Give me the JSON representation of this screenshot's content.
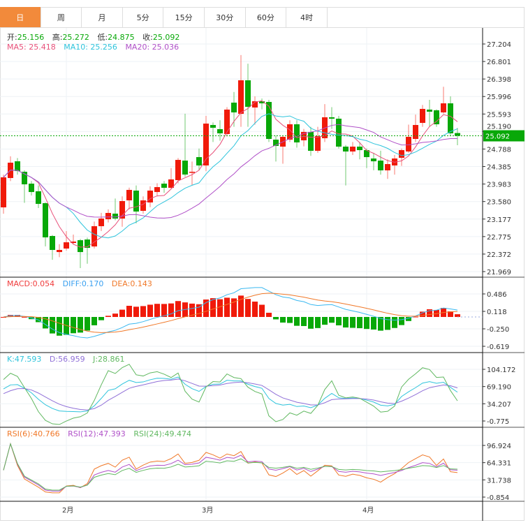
{
  "tabs": [
    {
      "label": "日",
      "active": true
    },
    {
      "label": "周"
    },
    {
      "label": "月"
    },
    {
      "label": "5分"
    },
    {
      "label": "15分"
    },
    {
      "label": "30分"
    },
    {
      "label": "60分"
    },
    {
      "label": "4时"
    }
  ],
  "ohlc_header": {
    "open_label": "开:",
    "open": "25.156",
    "high_label": "高:",
    "high": "25.272",
    "low_label": "低:",
    "low": "24.875",
    "close_label": "收:",
    "close": "25.092"
  },
  "ma_header": {
    "ma5": "MA5: 25.418",
    "ma10": "MA10: 25.256",
    "ma20": "MA20: 25.036"
  },
  "macd_header": {
    "macd": "MACD:0.054",
    "diff": "DIFF:0.170",
    "dea": "DEA:0.143"
  },
  "kdj_header": {
    "k": "K:47.593",
    "d": "D:56.959",
    "j": "J:28.861"
  },
  "rsi_header": {
    "rsi6": "RSI(6):40.766",
    "rsi12": "RSI(12):47.393",
    "rsi24": "RSI(24):49.474"
  },
  "colors": {
    "up": "#f01a0a",
    "down": "#08a808",
    "ma5": "#e8507a",
    "ma10": "#2ec4dc",
    "ma20": "#b050c8",
    "accent": "#f28a3b"
  },
  "chart_data": {
    "type": "candlestick",
    "price_axis": {
      "ticks": [
        "27.204",
        "26.801",
        "26.398",
        "25.996",
        "25.593",
        "25.190",
        "24.788",
        "24.385",
        "23.983",
        "23.580",
        "23.177",
        "22.775",
        "22.372",
        "21.969"
      ],
      "range": [
        21.969,
        27.204
      ]
    },
    "last_close": "25.092",
    "macd_axis": {
      "ticks": [
        "0.486",
        "0.118",
        "-0.250",
        "-0.619"
      ],
      "range": [
        -0.619,
        0.486
      ]
    },
    "kdj_axis": {
      "ticks": [
        "104.172",
        "69.190",
        "34.207",
        "-0.775"
      ],
      "range": [
        -0.775,
        104.172
      ]
    },
    "rsi_axis": {
      "ticks": [
        "96.924",
        "64.331",
        "31.738",
        "-0.854"
      ],
      "range": [
        -0.854,
        96.924
      ]
    },
    "x_labels": [
      {
        "label": "2月",
        "index": 9
      },
      {
        "label": "3月",
        "index": 29
      },
      {
        "label": "4月",
        "index": 52
      }
    ],
    "candles": [
      [
        23.446,
        24.137,
        24.2,
        23.3
      ],
      [
        24.121,
        24.474,
        24.62,
        24.05
      ],
      [
        24.506,
        24.281,
        24.58,
        24.2
      ],
      [
        24.265,
        23.976,
        24.3,
        23.55
      ],
      [
        23.992,
        23.799,
        24.05,
        23.72
      ],
      [
        23.816,
        23.526,
        23.95,
        23.43
      ],
      [
        23.543,
        22.756,
        23.56,
        22.55
      ],
      [
        22.788,
        22.467,
        22.81,
        22.24
      ],
      [
        22.418,
        22.467,
        22.6,
        22.3
      ],
      [
        22.499,
        22.643,
        22.9,
        22.45
      ],
      [
        22.627,
        22.659,
        22.82,
        22.6
      ],
      [
        22.691,
        22.418,
        22.72,
        22.05
      ],
      [
        22.707,
        22.515,
        22.75,
        22.15
      ],
      [
        22.547,
        23.013,
        23.12,
        22.5
      ],
      [
        23.013,
        23.189,
        23.32,
        22.9
      ],
      [
        23.173,
        23.318,
        23.4,
        23.1
      ],
      [
        23.302,
        23.189,
        23.65,
        23.15
      ],
      [
        23.189,
        23.591,
        23.7,
        23.0
      ],
      [
        23.607,
        23.848,
        23.9,
        23.4
      ],
      [
        23.832,
        23.35,
        23.95,
        23.08
      ],
      [
        23.366,
        23.607,
        23.7,
        23.3
      ],
      [
        23.559,
        23.832,
        23.93,
        23.45
      ],
      [
        23.799,
        23.912,
        24.0,
        23.7
      ],
      [
        23.992,
        23.896,
        24.05,
        23.78
      ],
      [
        23.896,
        24.089,
        24.35,
        23.87
      ],
      [
        24.073,
        24.538,
        24.58,
        24.0
      ],
      [
        24.522,
        24.201,
        25.6,
        24.15
      ],
      [
        24.249,
        24.265,
        24.5,
        23.95
      ],
      [
        24.602,
        24.41,
        24.8,
        24.3
      ],
      [
        24.41,
        25.373,
        25.55,
        24.28
      ],
      [
        25.341,
        25.277,
        25.4,
        24.95
      ],
      [
        25.245,
        25.149,
        25.45,
        24.98
      ],
      [
        25.133,
        25.695,
        25.75,
        25.08
      ],
      [
        25.855,
        25.63,
        26.1,
        25.3
      ],
      [
        25.598,
        26.369,
        26.95,
        25.3
      ],
      [
        26.369,
        25.759,
        26.75,
        25.3
      ],
      [
        25.743,
        25.887,
        26.0,
        25.35
      ],
      [
        25.887,
        25.839,
        25.95,
        25.7
      ],
      [
        25.871,
        25.02,
        25.92,
        24.95
      ],
      [
        25.004,
        24.859,
        25.1,
        24.5
      ],
      [
        24.843,
        25.068,
        25.1,
        24.45
      ],
      [
        25.004,
        25.357,
        25.45,
        24.95
      ],
      [
        25.357,
        24.94,
        25.45,
        24.82
      ],
      [
        24.988,
        25.181,
        25.25,
        24.85
      ],
      [
        25.181,
        24.747,
        25.3,
        24.63
      ],
      [
        24.747,
        25.084,
        25.3,
        24.7
      ],
      [
        25.036,
        25.518,
        25.82,
        24.95
      ],
      [
        25.518,
        25.486,
        25.75,
        25.25
      ],
      [
        25.486,
        24.843,
        25.55,
        24.8
      ],
      [
        24.843,
        24.731,
        24.88,
        23.95
      ],
      [
        24.731,
        24.843,
        24.95,
        24.65
      ],
      [
        24.843,
        24.763,
        24.95,
        24.55
      ],
      [
        24.763,
        24.602,
        24.8,
        24.35
      ],
      [
        24.57,
        24.506,
        24.7,
        24.3
      ],
      [
        24.522,
        24.297,
        24.75,
        24.2
      ],
      [
        24.297,
        24.442,
        24.55,
        24.1
      ],
      [
        24.41,
        24.57,
        24.65,
        24.2
      ],
      [
        24.586,
        24.763,
        24.8,
        24.4
      ],
      [
        24.731,
        25.068,
        25.35,
        24.7
      ],
      [
        25.02,
        25.341,
        25.58,
        24.95
      ],
      [
        25.389,
        25.711,
        25.8,
        25.3
      ],
      [
        25.695,
        25.646,
        25.92,
        25.3
      ],
      [
        25.679,
        25.357,
        25.7,
        25.3
      ],
      [
        25.63,
        25.839,
        26.22,
        25.6
      ],
      [
        25.839,
        25.149,
        26.0,
        25.1
      ],
      [
        25.156,
        25.092,
        25.272,
        24.875
      ]
    ]
  }
}
